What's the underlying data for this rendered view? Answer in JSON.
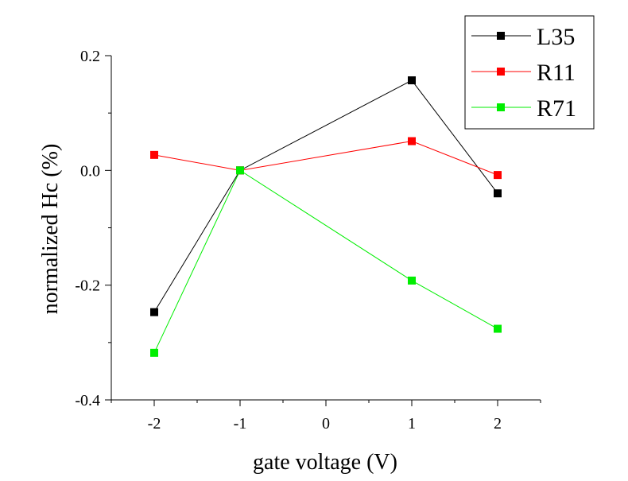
{
  "chart_data": {
    "type": "line",
    "title": "",
    "xlabel": "gate voltage (V)",
    "ylabel": "normalized Hc (%)",
    "xlim": [
      -2.5,
      2.5
    ],
    "ylim": [
      -0.4,
      0.2
    ],
    "x_ticks": [
      -2,
      -1,
      0,
      1,
      2
    ],
    "x_tick_labels": [
      "-2",
      "-1",
      "0",
      "1",
      "2"
    ],
    "y_ticks": [
      0.2,
      0.0,
      -0.2,
      -0.4
    ],
    "y_tick_labels": [
      "0.2",
      "0.0",
      "-0.2",
      "-0.4"
    ],
    "grid": false,
    "legend_position": "top-right",
    "series": [
      {
        "name": "L35",
        "color": "#000000",
        "marker": "square",
        "x": [
          -2,
          -1,
          1,
          2
        ],
        "y": [
          -0.247,
          0.0,
          0.157,
          -0.04
        ]
      },
      {
        "name": "R11",
        "color": "#ff0000",
        "marker": "square",
        "x": [
          -2,
          -1,
          1,
          2
        ],
        "y": [
          0.027,
          0.0,
          0.051,
          -0.008
        ]
      },
      {
        "name": "R71",
        "color": "#00ee00",
        "marker": "square",
        "x": [
          -2,
          -1,
          1,
          2
        ],
        "y": [
          -0.318,
          0.0,
          -0.192,
          -0.276
        ]
      }
    ]
  }
}
